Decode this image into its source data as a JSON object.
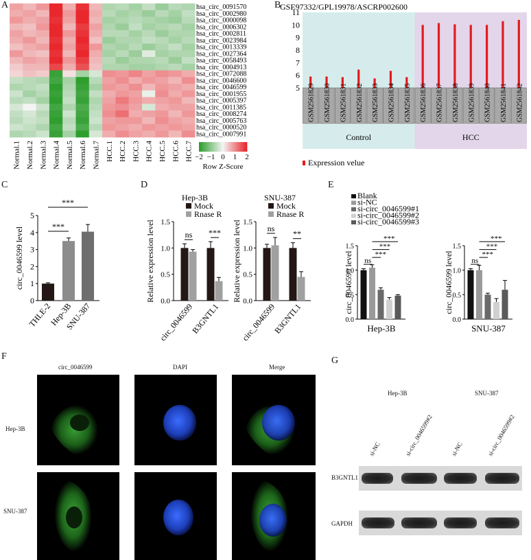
{
  "panel_letters": {
    "A": "A",
    "B": "B",
    "C": "C",
    "D": "D",
    "E": "E",
    "F": "F",
    "G": "G"
  },
  "heatmap": {
    "columns": [
      "Normal.1",
      "Normal.2",
      "Normal.3",
      "Normal.4",
      "Normal.5",
      "Normal.6",
      "Normal.7",
      "HCC.1",
      "HCC.2",
      "HCC.3",
      "HCC.4",
      "HCC.5",
      "HCC.6",
      "HCC.7"
    ],
    "rows": [
      "hsa_circ_0091570",
      "hsa_circ_0002980",
      "hsa_circ_0000098",
      "hsa_circ_0006302",
      "hsa_circ_0002811",
      "hsa_circ_0023984",
      "hsa_circ_0013339",
      "hsa_circ_0027364",
      "hsa_circ_0058493",
      "hsa_circ_0004913",
      "hsa_circ_0072088",
      "hsa_circ_0046600",
      "hsa_circ_0046599",
      "hsa_circ_0001955",
      "hsa_circ_0005397",
      "hsa_circ_0011385",
      "hsa_circ_0008274",
      "hsa_circ_0005763",
      "hsa_circ_0000520",
      "hsa_circ_0007991"
    ],
    "values": [
      [
        0.8,
        0.6,
        0.9,
        2.0,
        0.7,
        1.9,
        0.6,
        -0.7,
        -0.6,
        -0.8,
        -0.5,
        -0.9,
        -0.6,
        -0.7
      ],
      [
        0.7,
        0.8,
        0.6,
        2.0,
        0.9,
        2.0,
        0.7,
        -0.6,
        -0.8,
        -0.7,
        -0.9,
        -0.6,
        -0.8,
        -0.5
      ],
      [
        0.9,
        0.7,
        0.8,
        1.9,
        0.8,
        2.0,
        0.6,
        -0.8,
        -0.7,
        -0.6,
        -0.7,
        -0.8,
        -0.9,
        -0.6
      ],
      [
        0.6,
        0.5,
        0.9,
        2.0,
        0.6,
        1.8,
        0.8,
        -0.7,
        -0.9,
        -0.5,
        -0.8,
        -0.7,
        -0.6,
        -0.8
      ],
      [
        0.8,
        0.6,
        0.7,
        2.0,
        0.9,
        1.9,
        0.7,
        -0.6,
        -0.6,
        -0.8,
        -0.6,
        -0.9,
        -0.7,
        -0.7
      ],
      [
        0.7,
        0.9,
        0.6,
        1.9,
        0.7,
        2.0,
        0.5,
        -0.9,
        -0.7,
        -0.7,
        -0.5,
        -0.6,
        -0.8,
        -0.6
      ],
      [
        0.5,
        0.7,
        0.8,
        2.0,
        0.8,
        1.9,
        0.9,
        -0.7,
        -0.8,
        -0.6,
        -0.9,
        -0.7,
        -0.5,
        -0.8
      ],
      [
        0.9,
        0.6,
        0.5,
        1.9,
        0.6,
        2.0,
        0.7,
        -0.8,
        -0.6,
        -0.9,
        -0.2,
        -0.8,
        -0.7,
        -0.7
      ],
      [
        0.6,
        0.8,
        0.7,
        2.0,
        0.9,
        1.8,
        0.6,
        -0.6,
        -0.9,
        -0.7,
        -0.7,
        -0.6,
        -0.9,
        -0.5
      ],
      [
        0.4,
        0.6,
        0.6,
        1.7,
        0.7,
        1.6,
        0.5,
        -0.7,
        -0.7,
        -0.8,
        -0.8,
        -0.7,
        -0.6,
        -0.8
      ],
      [
        0.3,
        0.5,
        0.4,
        -1.9,
        0.2,
        -0.8,
        -0.3,
        1.0,
        0.9,
        1.1,
        0.8,
        1.0,
        0.9,
        0.7
      ],
      [
        -0.5,
        -0.6,
        -0.7,
        -1.8,
        -0.8,
        -2.0,
        -0.6,
        0.8,
        1.0,
        0.7,
        0.9,
        0.8,
        0.6,
        1.0
      ],
      [
        -0.7,
        -0.6,
        -0.5,
        -2.0,
        -0.7,
        -1.9,
        -0.8,
        0.9,
        0.8,
        1.0,
        0.6,
        0.9,
        0.8,
        0.7
      ],
      [
        -0.4,
        -0.8,
        -0.6,
        -1.9,
        -0.6,
        -1.8,
        -0.5,
        0.7,
        0.9,
        0.8,
        -0.1,
        1.0,
        0.7,
        0.9
      ],
      [
        -0.6,
        -0.5,
        -0.8,
        -2.0,
        -0.5,
        -1.9,
        -0.7,
        0.8,
        1.2,
        0.9,
        0.7,
        0.8,
        0.9,
        0.6
      ],
      [
        -0.3,
        0.0,
        -0.4,
        -1.8,
        -0.7,
        -1.7,
        -0.6,
        0.9,
        1.0,
        0.8,
        -0.3,
        0.7,
        0.8,
        0.8
      ],
      [
        -0.5,
        -0.3,
        -0.6,
        -1.9,
        -0.4,
        -1.8,
        -0.5,
        1.0,
        1.3,
        0.7,
        0.8,
        0.9,
        0.6,
        0.9
      ],
      [
        -0.6,
        -0.4,
        -0.5,
        -2.0,
        -0.6,
        -1.9,
        -0.4,
        0.8,
        0.9,
        0.9,
        0.6,
        1.0,
        0.8,
        0.7
      ],
      [
        -0.4,
        -0.5,
        -0.7,
        -1.8,
        -0.5,
        -1.7,
        -0.6,
        0.9,
        0.8,
        0.7,
        0.9,
        0.8,
        0.9,
        0.8
      ],
      [
        -0.7,
        -0.6,
        -0.4,
        -1.9,
        -0.8,
        -2.0,
        -0.3,
        0.7,
        1.0,
        0.8,
        0.7,
        0.9,
        0.6,
        1.0
      ]
    ],
    "colorscale": {
      "low": "#2e9e2e",
      "mid": "#f4f4f4",
      "high": "#e8282d"
    },
    "legend_ticks": [
      "−2",
      "−1",
      "0",
      "1",
      "2"
    ],
    "legend_title": "Row Z-Score"
  },
  "chart_data": [
    {
      "panel": "B",
      "type": "bar",
      "title": "GSE97332/GPL19978/ASCRP002600",
      "categories": [
        "GSM2561829",
        "GSM2561830",
        "GSM2561831",
        "GSM2561832",
        "GSM2561833",
        "GSM2561834",
        "GSM2561835",
        "GSM2561836",
        "GSM2561837",
        "GSM2561838",
        "GSM2561839",
        "GSM2561840",
        "GSM2561841",
        "GSM2561842"
      ],
      "values": [
        5.9,
        5.9,
        5.85,
        6.45,
        5.75,
        6.35,
        5.85,
        10.0,
        10.15,
        10.05,
        10.0,
        10.0,
        10.3,
        10.4
      ],
      "ylim": [
        5,
        11
      ],
      "yticks": [
        "5",
        "6",
        "7",
        "8",
        "9",
        "10",
        "11"
      ],
      "groups": [
        {
          "label": "Control",
          "count": 7,
          "color": "#d6ecec"
        },
        {
          "label": "HCC",
          "count": 7,
          "color": "#e3d6ea"
        }
      ],
      "legend": "Expression velue",
      "bar_color": "#e41a1c"
    },
    {
      "panel": "C",
      "type": "bar",
      "ylabel": "circ_0046599 level",
      "categories": [
        "THLE-2",
        "Hep-3B",
        "SNU-387"
      ],
      "values": [
        1.0,
        3.5,
        4.05
      ],
      "errors": [
        0.05,
        0.18,
        0.42
      ],
      "ylim": [
        0,
        5
      ],
      "yticks": [
        "0",
        "1",
        "2",
        "3",
        "4",
        "5"
      ],
      "colors": [
        "#231815",
        "#8c8c8c",
        "#6e6e6e"
      ],
      "significance": [
        {
          "from": 0,
          "to": 1,
          "label": "***"
        },
        {
          "from": 0,
          "to": 2,
          "label": "***"
        }
      ]
    },
    {
      "panel": "D-Hep-3B",
      "type": "bar",
      "title": "Hep-3B",
      "ylabel": "Relative expression level",
      "categories": [
        "circ_0046599",
        "B3GNTL1"
      ],
      "series": [
        {
          "name": "Mock",
          "values": [
            1.0,
            1.0
          ],
          "errors": [
            0.08,
            0.12
          ],
          "color": "#231815"
        },
        {
          "name": "Rnase R",
          "values": [
            0.93,
            0.37
          ],
          "errors": [
            0.04,
            0.07
          ],
          "color": "#a0a0a0"
        }
      ],
      "ylim": [
        0,
        1.5
      ],
      "yticks": [
        "0.0",
        "0.5",
        "1.0",
        "1.5"
      ],
      "significance": [
        "ns",
        "***"
      ]
    },
    {
      "panel": "D-SNU-387",
      "type": "bar",
      "title": "SNU-387",
      "ylabel": "Relative expression level",
      "categories": [
        "circ_0046599",
        "B3GNTL1"
      ],
      "series": [
        {
          "name": "Mock",
          "values": [
            1.0,
            1.0
          ],
          "errors": [
            0.07,
            0.1
          ],
          "color": "#231815"
        },
        {
          "name": "Rnase R",
          "values": [
            1.05,
            0.45
          ],
          "errors": [
            0.15,
            0.1
          ],
          "color": "#a0a0a0"
        }
      ],
      "ylim": [
        0,
        1.5
      ],
      "yticks": [
        "0.0",
        "0.5",
        "1.0",
        "1.5"
      ],
      "significance": [
        "ns",
        "**"
      ]
    },
    {
      "panel": "E-Hep-3B",
      "type": "bar",
      "xlabel": "Hep-3B",
      "ylabel": "circ_0046599 level",
      "categories": [
        "Blank",
        "si-NC",
        "si-circ_0046599#1",
        "si-circ_0046599#2",
        "si-circ_0046599#3"
      ],
      "values": [
        1.0,
        1.05,
        0.6,
        0.4,
        0.48
      ],
      "errors": [
        0.03,
        0.06,
        0.04,
        0.04,
        0.02
      ],
      "ylim": [
        0,
        1.5
      ],
      "yticks": [
        "0.0",
        "0.5",
        "1.0",
        "1.5"
      ],
      "colors": [
        "#111111",
        "#9a9a9a",
        "#6a6a6a",
        "#d0d0d0",
        "#5a5a5a"
      ],
      "significance": [
        "ns",
        "***",
        "***",
        "***"
      ]
    },
    {
      "panel": "E-SNU-387",
      "type": "bar",
      "xlabel": "SNU-387",
      "ylabel": "circ_0046599 level",
      "categories": [
        "Blank",
        "si-NC",
        "si-circ_0046599#1",
        "si-circ_0046599#2",
        "si-circ_0046599#3"
      ],
      "values": [
        1.0,
        1.0,
        0.5,
        0.35,
        0.6
      ],
      "errors": [
        0.03,
        0.1,
        0.03,
        0.07,
        0.19
      ],
      "ylim": [
        0,
        1.5
      ],
      "yticks": [
        "0.0",
        "0.5",
        "1.0",
        "1.5"
      ],
      "colors": [
        "#111111",
        "#9a9a9a",
        "#6a6a6a",
        "#d0d0d0",
        "#5a5a5a"
      ],
      "significance": [
        "ns",
        "***",
        "***",
        "***"
      ]
    }
  ],
  "legend_E": [
    "Blank",
    "si-NC",
    "si-circ_0046599#1",
    "si-circ_0046599#2",
    "si-circ_0046599#3"
  ],
  "panelF": {
    "columns": [
      "circ_0046599",
      "DAPI",
      "Merge"
    ],
    "rows": [
      "Hep-3B",
      "SNU-387"
    ]
  },
  "panelG": {
    "groups": [
      "Hep-3B",
      "SNU-387"
    ],
    "lanes": [
      "si-NC",
      "si-circ_0046599#2",
      "si-NC",
      "si-circ_0046599#2"
    ],
    "bands": [
      "B3GNTL1",
      "GAPDH"
    ]
  }
}
